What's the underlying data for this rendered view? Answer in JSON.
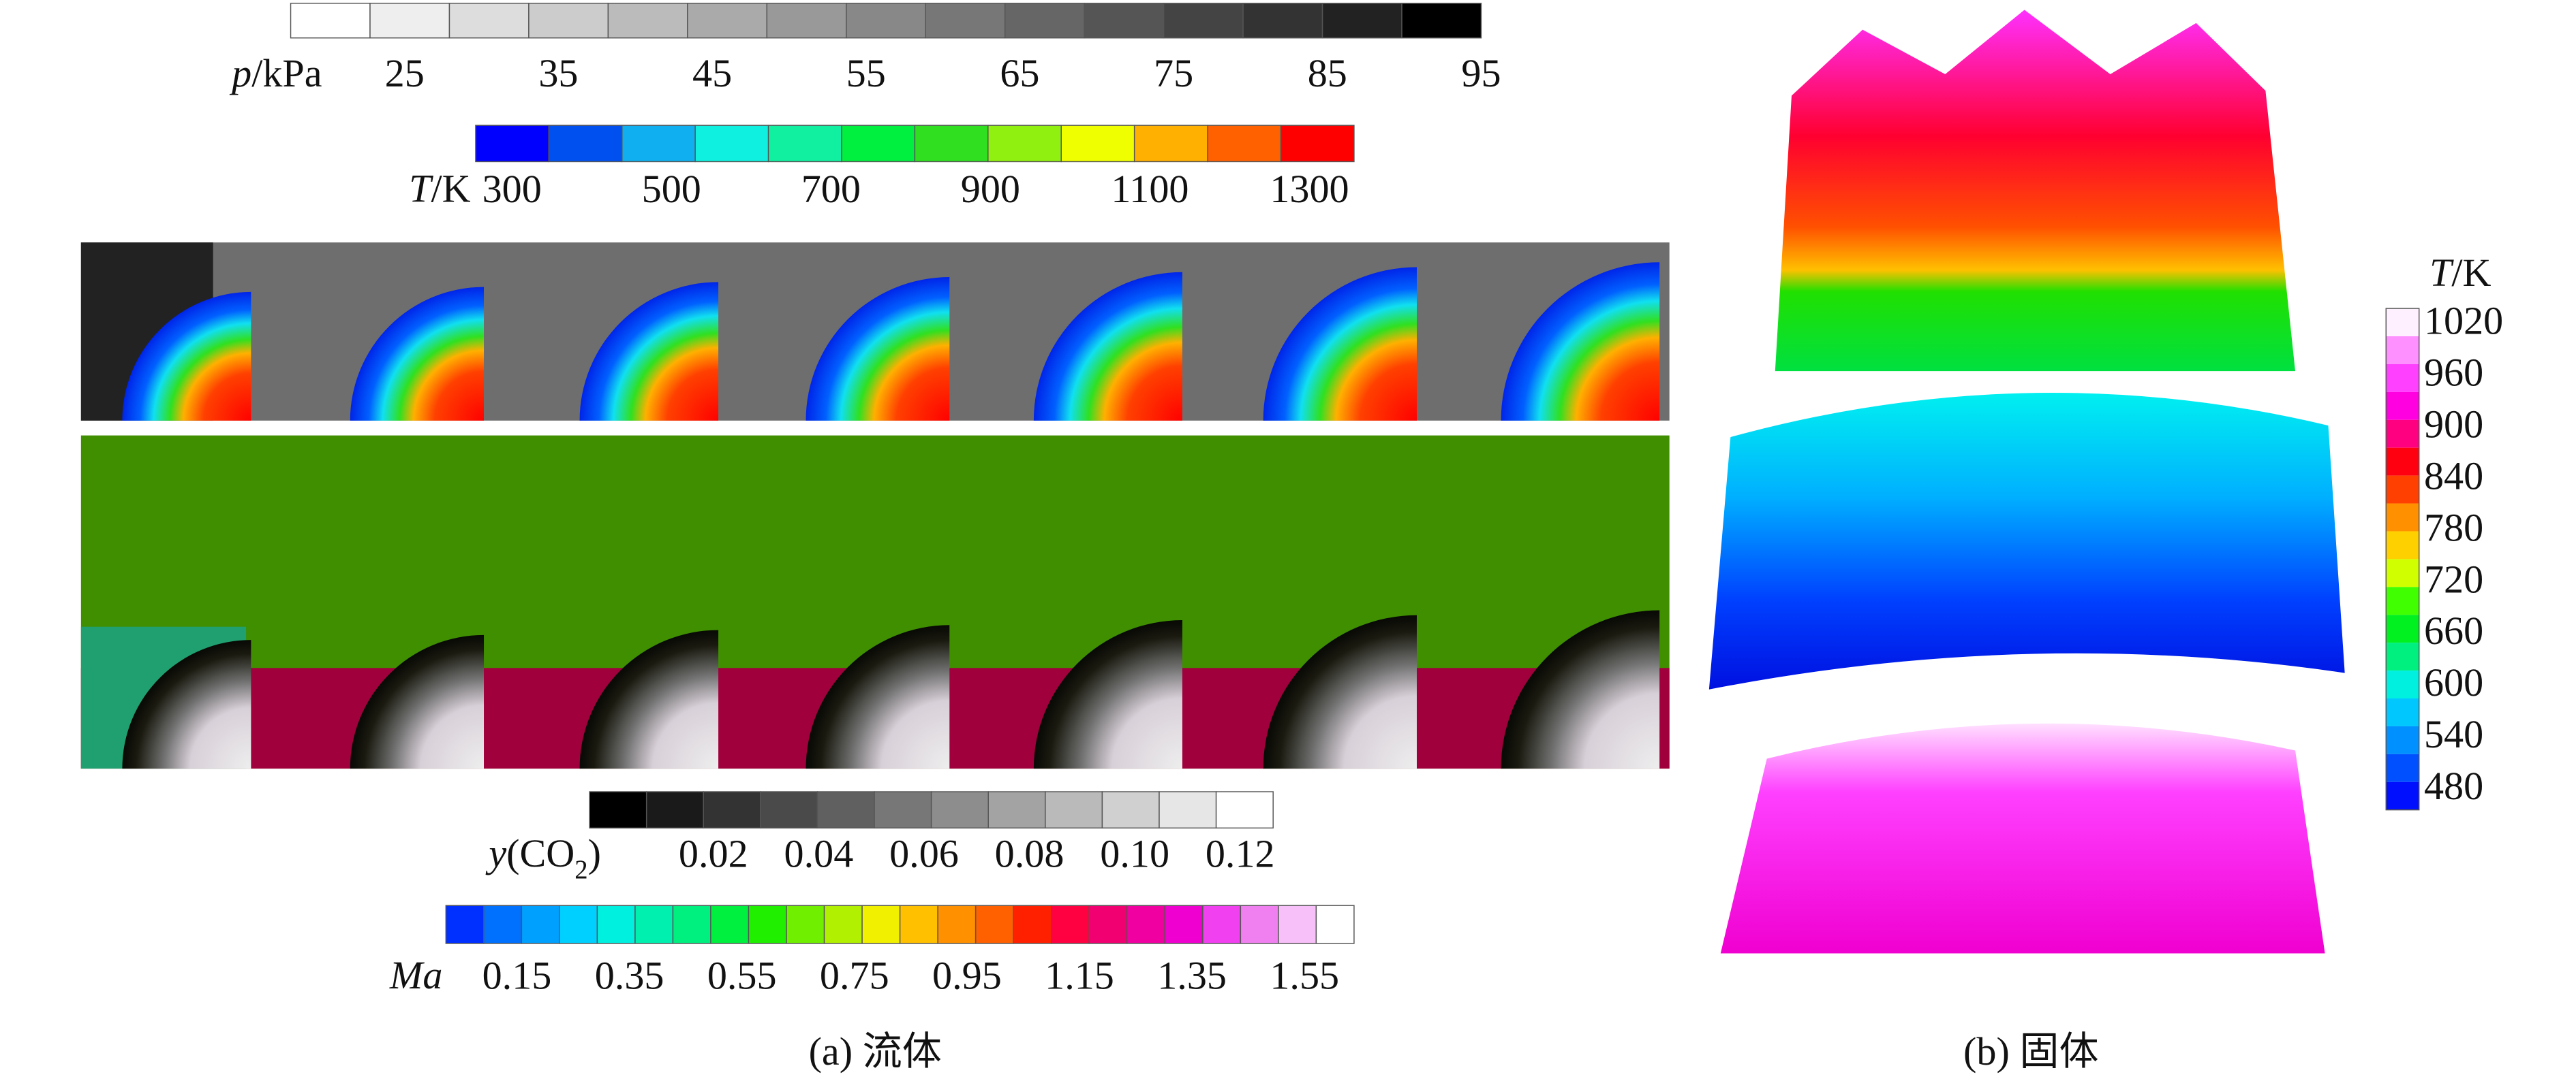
{
  "fluid": {
    "pressure_bar": {
      "label": {
        "symbol": "p",
        "unit": "/kPa"
      },
      "ticks": [
        "25",
        "35",
        "45",
        "55",
        "65",
        "75",
        "85",
        "95"
      ],
      "colors": [
        "#ffffff",
        "#eeeeee",
        "#dddddd",
        "#cccccc",
        "#bbbbbb",
        "#aaaaaa",
        "#999999",
        "#888888",
        "#777777",
        "#666666",
        "#555555",
        "#444444",
        "#333333",
        "#222222",
        "#000000"
      ]
    },
    "temperature_bar": {
      "label": {
        "symbol": "T",
        "unit": "/K"
      },
      "ticks": [
        "300",
        "500",
        "700",
        "900",
        "1100",
        "1300"
      ],
      "colors": [
        "#0000ff",
        "#0050f0",
        "#10b0f0",
        "#10f0e0",
        "#10f0a0",
        "#00f040",
        "#30e020",
        "#90f010",
        "#f0ff00",
        "#ffb000",
        "#ff6000",
        "#ff0000"
      ]
    },
    "co2_bar": {
      "label": {
        "symbol": "y",
        "open": "(CO",
        "subscript": "2",
        "close": ")"
      },
      "ticks": [
        "0.02",
        "0.04",
        "0.06",
        "0.08",
        "0.10",
        "0.12"
      ],
      "colors": [
        "#000000",
        "#1a1a1a",
        "#333333",
        "#4a4a4a",
        "#606060",
        "#777777",
        "#8d8d8d",
        "#a3a3a3",
        "#bababa",
        "#d0d0d0",
        "#e6e6e6",
        "#ffffff"
      ]
    },
    "mach_bar": {
      "label": {
        "symbol": "Ma"
      },
      "ticks": [
        "0.15",
        "0.35",
        "0.55",
        "0.75",
        "0.95",
        "1.15",
        "1.35",
        "1.55"
      ],
      "colors": [
        "#0030ff",
        "#0070ff",
        "#00a0ff",
        "#00d0ff",
        "#00f0e0",
        "#00f0b0",
        "#00f080",
        "#00f040",
        "#20f000",
        "#70f000",
        "#b0f000",
        "#f0f000",
        "#ffc000",
        "#ff9000",
        "#ff6000",
        "#ff2000",
        "#ff0040",
        "#f00070",
        "#f000a0",
        "#f000d0",
        "#f040f0",
        "#f080f0",
        "#f8c0f8",
        "#ffffff"
      ]
    },
    "caption": "(a) 流体"
  },
  "solid": {
    "temperature_bar": {
      "label": {
        "symbol": "T",
        "unit": "/K"
      },
      "ticks": [
        "1020",
        "960",
        "900",
        "840",
        "780",
        "720",
        "660",
        "600",
        "540",
        "480"
      ],
      "colors": [
        "#fff0ff",
        "#ff90ff",
        "#ff40ff",
        "#ff00e0",
        "#ff0080",
        "#ff0010",
        "#ff4000",
        "#ff9000",
        "#ffd000",
        "#d0ff00",
        "#40ff00",
        "#00f020",
        "#00f080",
        "#00f0e0",
        "#00c8ff",
        "#0090ff",
        "#0050ff",
        "#0010ff"
      ]
    },
    "caption": "(b) 固体"
  }
}
